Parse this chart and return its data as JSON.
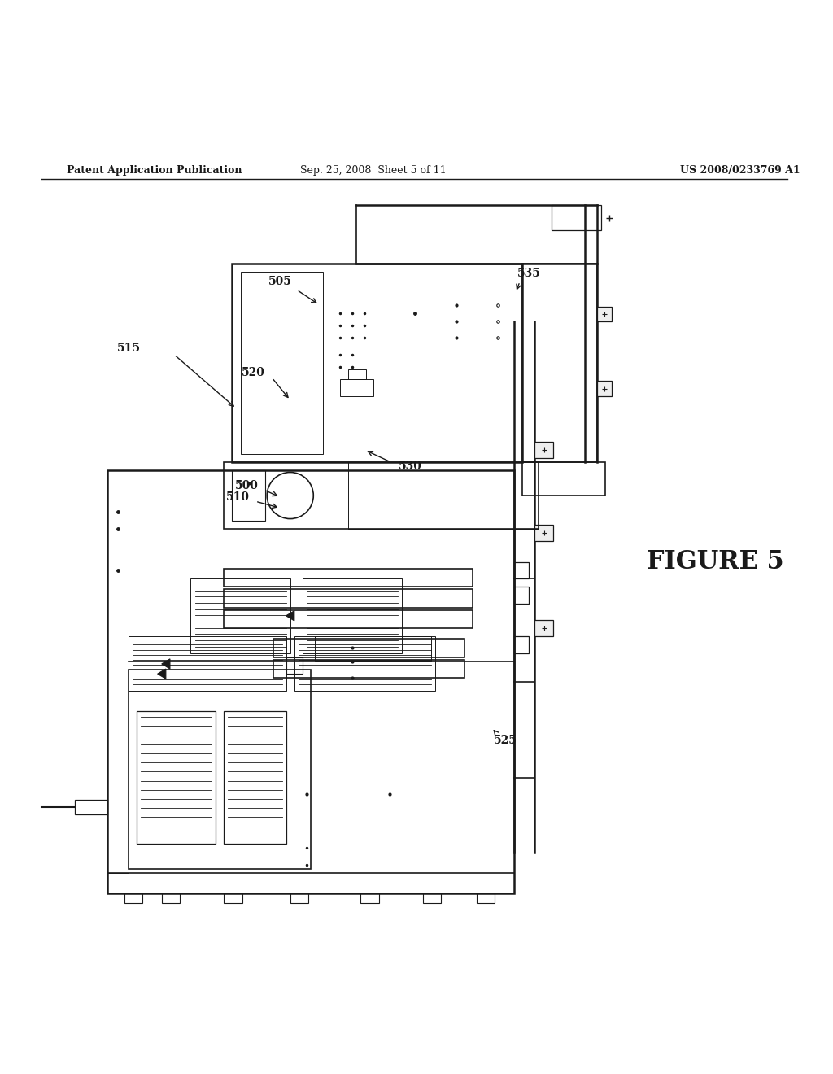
{
  "bg_color": "#ffffff",
  "line_color": "#1a1a1a",
  "header_left": "Patent Application Publication",
  "header_mid": "Sep. 25, 2008  Sheet 5 of 11",
  "header_right": "US 2008/0233769 A1",
  "figure_label": "FIGURE 5"
}
